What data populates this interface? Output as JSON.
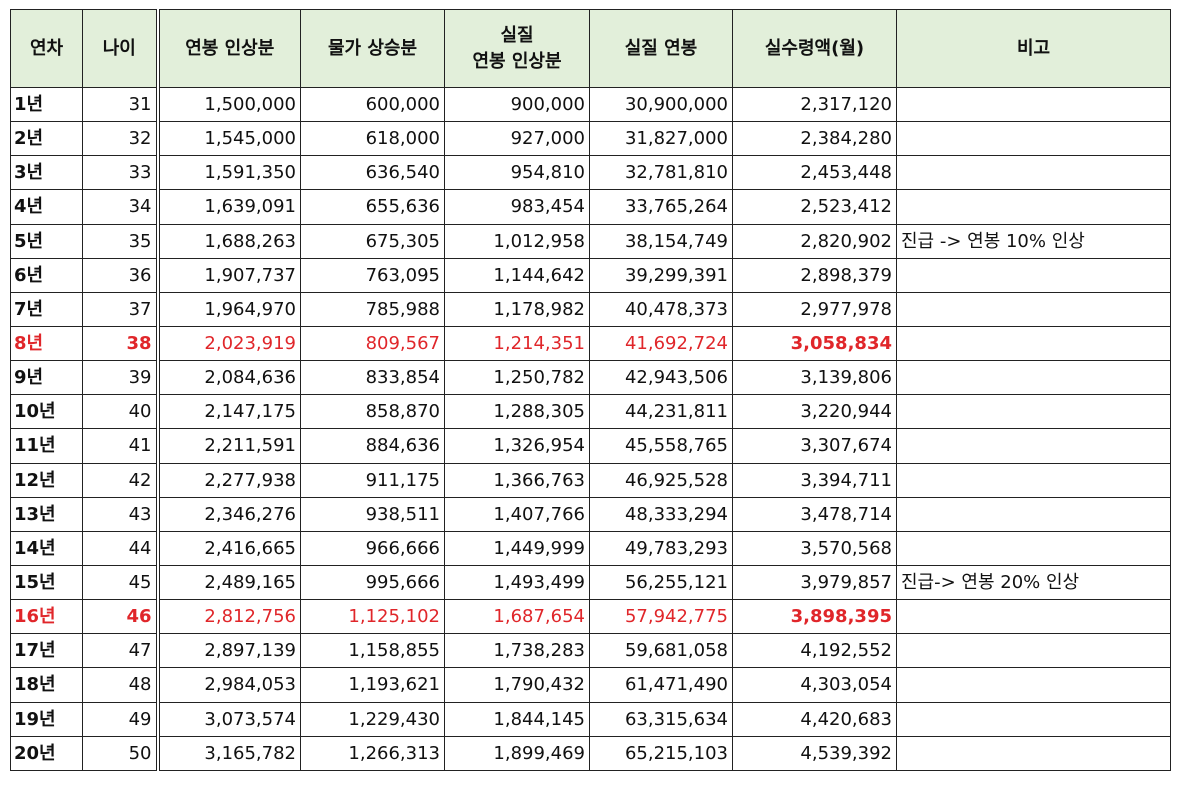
{
  "table": {
    "headers": {
      "year": "연차",
      "age": "나이",
      "raise": "연봉 인상분",
      "inflation": "물가 상승분",
      "real_raise_l1": "실질",
      "real_raise_l2": "연봉 인상분",
      "real_salary": "실질 연봉",
      "monthly": "실수령액(월)",
      "note": "비고"
    },
    "highlight_color": "#e0262a",
    "header_bg": "#e2efda",
    "rows": [
      {
        "year": "1년",
        "age": "31",
        "raise": "1,500,000",
        "inflation": "600,000",
        "real_raise": "900,000",
        "real_salary": "30,900,000",
        "monthly": "2,317,120",
        "note": "",
        "highlight": false
      },
      {
        "year": "2년",
        "age": "32",
        "raise": "1,545,000",
        "inflation": "618,000",
        "real_raise": "927,000",
        "real_salary": "31,827,000",
        "monthly": "2,384,280",
        "note": "",
        "highlight": false
      },
      {
        "year": "3년",
        "age": "33",
        "raise": "1,591,350",
        "inflation": "636,540",
        "real_raise": "954,810",
        "real_salary": "32,781,810",
        "monthly": "2,453,448",
        "note": "",
        "highlight": false
      },
      {
        "year": "4년",
        "age": "34",
        "raise": "1,639,091",
        "inflation": "655,636",
        "real_raise": "983,454",
        "real_salary": "33,765,264",
        "monthly": "2,523,412",
        "note": "",
        "highlight": false
      },
      {
        "year": "5년",
        "age": "35",
        "raise": "1,688,263",
        "inflation": "675,305",
        "real_raise": "1,012,958",
        "real_salary": "38,154,749",
        "monthly": "2,820,902",
        "note": "진급 -> 연봉 10% 인상",
        "highlight": false
      },
      {
        "year": "6년",
        "age": "36",
        "raise": "1,907,737",
        "inflation": "763,095",
        "real_raise": "1,144,642",
        "real_salary": "39,299,391",
        "monthly": "2,898,379",
        "note": "",
        "highlight": false
      },
      {
        "year": "7년",
        "age": "37",
        "raise": "1,964,970",
        "inflation": "785,988",
        "real_raise": "1,178,982",
        "real_salary": "40,478,373",
        "monthly": "2,977,978",
        "note": "",
        "highlight": false
      },
      {
        "year": "8년",
        "age": "38",
        "raise": "2,023,919",
        "inflation": "809,567",
        "real_raise": "1,214,351",
        "real_salary": "41,692,724",
        "monthly": "3,058,834",
        "note": "",
        "highlight": true
      },
      {
        "year": "9년",
        "age": "39",
        "raise": "2,084,636",
        "inflation": "833,854",
        "real_raise": "1,250,782",
        "real_salary": "42,943,506",
        "monthly": "3,139,806",
        "note": "",
        "highlight": false
      },
      {
        "year": "10년",
        "age": "40",
        "raise": "2,147,175",
        "inflation": "858,870",
        "real_raise": "1,288,305",
        "real_salary": "44,231,811",
        "monthly": "3,220,944",
        "note": "",
        "highlight": false
      },
      {
        "year": "11년",
        "age": "41",
        "raise": "2,211,591",
        "inflation": "884,636",
        "real_raise": "1,326,954",
        "real_salary": "45,558,765",
        "monthly": "3,307,674",
        "note": "",
        "highlight": false
      },
      {
        "year": "12년",
        "age": "42",
        "raise": "2,277,938",
        "inflation": "911,175",
        "real_raise": "1,366,763",
        "real_salary": "46,925,528",
        "monthly": "3,394,711",
        "note": "",
        "highlight": false
      },
      {
        "year": "13년",
        "age": "43",
        "raise": "2,346,276",
        "inflation": "938,511",
        "real_raise": "1,407,766",
        "real_salary": "48,333,294",
        "monthly": "3,478,714",
        "note": "",
        "highlight": false
      },
      {
        "year": "14년",
        "age": "44",
        "raise": "2,416,665",
        "inflation": "966,666",
        "real_raise": "1,449,999",
        "real_salary": "49,783,293",
        "monthly": "3,570,568",
        "note": "",
        "highlight": false
      },
      {
        "year": "15년",
        "age": "45",
        "raise": "2,489,165",
        "inflation": "995,666",
        "real_raise": "1,493,499",
        "real_salary": "56,255,121",
        "monthly": "3,979,857",
        "note": "진급-> 연봉 20% 인상",
        "highlight": false
      },
      {
        "year": "16년",
        "age": "46",
        "raise": "2,812,756",
        "inflation": "1,125,102",
        "real_raise": "1,687,654",
        "real_salary": "57,942,775",
        "monthly": "3,898,395",
        "note": "",
        "highlight": true
      },
      {
        "year": "17년",
        "age": "47",
        "raise": "2,897,139",
        "inflation": "1,158,855",
        "real_raise": "1,738,283",
        "real_salary": "59,681,058",
        "monthly": "4,192,552",
        "note": "",
        "highlight": false
      },
      {
        "year": "18년",
        "age": "48",
        "raise": "2,984,053",
        "inflation": "1,193,621",
        "real_raise": "1,790,432",
        "real_salary": "61,471,490",
        "monthly": "4,303,054",
        "note": "",
        "highlight": false
      },
      {
        "year": "19년",
        "age": "49",
        "raise": "3,073,574",
        "inflation": "1,229,430",
        "real_raise": "1,844,145",
        "real_salary": "63,315,634",
        "monthly": "4,420,683",
        "note": "",
        "highlight": false
      },
      {
        "year": "20년",
        "age": "50",
        "raise": "3,165,782",
        "inflation": "1,266,313",
        "real_raise": "1,899,469",
        "real_salary": "65,215,103",
        "monthly": "4,539,392",
        "note": "",
        "highlight": false
      }
    ]
  }
}
